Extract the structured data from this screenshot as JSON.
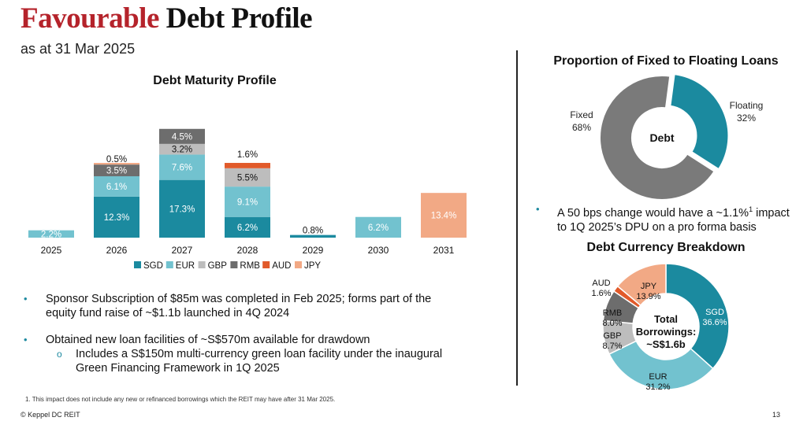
{
  "header": {
    "title_accent": "Favourable",
    "title_rest": "Debt Profile",
    "subtitle": "as at 31 Mar 2025"
  },
  "colors": {
    "accent": "#b5232b",
    "SGD": "#1b8a9f",
    "EUR": "#72c2cf",
    "GBP": "#bdbdbd",
    "RMB": "#6d6d6d",
    "AUD": "#e15a2a",
    "JPY": "#f2a985",
    "fixed": "#7a7a7a",
    "floating": "#1b8a9f"
  },
  "chart_data": [
    {
      "type": "bar",
      "stacked": true,
      "title": "Debt Maturity Profile",
      "categories": [
        "2025",
        "2026",
        "2027",
        "2028",
        "2029",
        "2030",
        "2031"
      ],
      "series": [
        {
          "name": "SGD",
          "values": [
            0,
            12.3,
            17.3,
            6.2,
            0.8,
            0,
            0
          ]
        },
        {
          "name": "EUR",
          "values": [
            2.2,
            6.1,
            7.6,
            9.1,
            0,
            6.2,
            0
          ]
        },
        {
          "name": "GBP",
          "values": [
            0,
            0,
            3.2,
            5.5,
            0,
            0,
            0
          ]
        },
        {
          "name": "RMB",
          "values": [
            0,
            3.5,
            4.5,
            0,
            0,
            0,
            0
          ]
        },
        {
          "name": "AUD",
          "values": [
            0,
            0,
            0,
            1.6,
            0,
            0,
            0
          ]
        },
        {
          "name": "JPY",
          "values": [
            0,
            0.5,
            0,
            0,
            0,
            0,
            13.4
          ]
        }
      ],
      "unit": "%",
      "legend": "bottom",
      "grid": false
    },
    {
      "type": "pie",
      "donut": true,
      "title": "Proportion of Fixed to Floating Loans",
      "center_label": "Debt",
      "slices": [
        {
          "name": "Floating",
          "value": 32
        },
        {
          "name": "Fixed",
          "value": 68
        }
      ]
    },
    {
      "type": "pie",
      "donut": true,
      "title": "Debt Currency Breakdown",
      "center_label": [
        "Total",
        "Borrowings:",
        "~S$1.6b"
      ],
      "slices": [
        {
          "name": "SGD",
          "value": 36.6
        },
        {
          "name": "EUR",
          "value": 31.2
        },
        {
          "name": "GBP",
          "value": 8.7
        },
        {
          "name": "RMB",
          "value": 8.0
        },
        {
          "name": "AUD",
          "value": 1.6
        },
        {
          "name": "JPY",
          "value": 13.9
        }
      ]
    }
  ],
  "right_bullet": {
    "line1_pre": "A 50 bps change would have a ~1.1%",
    "line1_sup": "1",
    "line1_post": " impact",
    "line2": "to 1Q 2025’s DPU on a pro forma basis"
  },
  "bullets": [
    {
      "lines": [
        "Sponsor Subscription of $85m was completed in Feb 2025; forms part of the",
        "equity fund raise of ~$1.1b launched in 4Q 2024"
      ]
    },
    {
      "lines": [
        "Obtained new loan facilities of ~S$570m available for drawdown"
      ]
    }
  ],
  "sub_bullet": {
    "marker": "o",
    "lines": [
      "Includes a S$150m multi-currency green loan facility under the inaugural",
      "Green Financing Framework in 1Q 2025"
    ]
  },
  "footnote": "1.   This impact does not include any new or refinanced borrowings which the REIT may have after 31 Mar 2025.",
  "footer": {
    "copyright": "© Keppel DC REIT",
    "page": "13"
  }
}
